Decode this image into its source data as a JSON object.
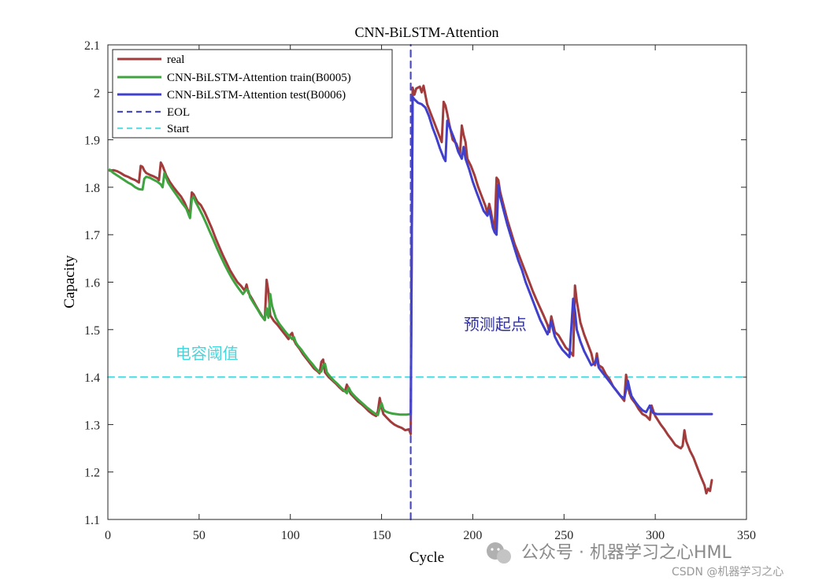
{
  "chart_data": {
    "type": "line",
    "title": "CNN-BiLSTM-Attention",
    "xlabel": "Cycle",
    "ylabel": "Capacity",
    "xlim": [
      0,
      350
    ],
    "ylim": [
      1.1,
      2.1
    ],
    "xticks": [
      0,
      50,
      100,
      150,
      200,
      250,
      300,
      350
    ],
    "yticks": [
      1.1,
      1.2,
      1.3,
      1.4,
      1.5,
      1.6,
      1.7,
      1.8,
      1.9,
      2.0,
      2.1
    ],
    "xtick_labels": [
      "0",
      "50",
      "100",
      "150",
      "200",
      "250",
      "300",
      "350"
    ],
    "ytick_labels": [
      "1.1",
      "1.2",
      "1.3",
      "1.4",
      "1.5",
      "1.6",
      "1.7",
      "1.8",
      "1.9",
      "2",
      "2.1"
    ],
    "grid": false,
    "legend_position": "top-left",
    "series": [
      {
        "name": "real",
        "color": "#a23b3b",
        "style": "solid",
        "x": [
          1,
          3,
          5,
          7,
          9,
          11,
          13,
          15,
          17,
          18,
          19,
          20,
          21,
          23,
          25,
          27,
          28,
          29,
          30,
          32,
          34,
          36,
          38,
          40,
          42,
          44,
          45,
          46,
          47,
          49,
          51,
          53,
          55,
          57,
          59,
          61,
          63,
          65,
          67,
          69,
          71,
          73,
          75,
          76,
          77,
          79,
          81,
          83,
          85,
          86,
          87,
          88,
          89,
          91,
          93,
          95,
          97,
          99,
          100,
          101,
          102,
          103,
          105,
          107,
          109,
          111,
          113,
          115,
          116,
          117,
          118,
          119,
          121,
          123,
          125,
          127,
          129,
          130,
          131,
          132,
          133,
          135,
          137,
          139,
          141,
          143,
          145,
          147,
          148,
          149,
          150,
          151,
          153,
          155,
          157,
          159,
          161,
          163,
          165,
          166,
          167,
          168,
          169,
          171,
          172,
          173,
          175,
          177,
          179,
          181,
          183,
          184,
          185,
          186,
          187,
          189,
          191,
          193,
          194,
          195,
          196,
          197,
          199,
          201,
          203,
          205,
          207,
          208,
          209,
          210,
          211,
          212,
          213,
          214,
          215,
          217,
          219,
          221,
          223,
          225,
          227,
          229,
          231,
          233,
          235,
          237,
          239,
          241,
          242,
          243,
          244,
          245,
          247,
          249,
          251,
          253,
          254,
          255,
          256,
          257,
          259,
          261,
          263,
          265,
          266,
          267,
          268,
          269,
          271,
          273,
          275,
          277,
          279,
          281,
          283,
          284,
          285,
          286,
          287,
          289,
          291,
          293,
          295,
          297,
          298,
          299,
          300,
          301,
          303,
          305,
          307,
          309,
          311,
          313,
          314,
          315,
          316,
          317,
          319,
          321,
          323,
          325,
          327,
          328,
          329,
          330,
          331
        ],
        "values": [
          1.835,
          1.836,
          1.834,
          1.83,
          1.825,
          1.822,
          1.818,
          1.815,
          1.81,
          1.845,
          1.843,
          1.835,
          1.83,
          1.826,
          1.823,
          1.819,
          1.815,
          1.852,
          1.845,
          1.825,
          1.811,
          1.8,
          1.79,
          1.781,
          1.768,
          1.75,
          1.745,
          1.789,
          1.785,
          1.77,
          1.762,
          1.748,
          1.731,
          1.713,
          1.693,
          1.675,
          1.657,
          1.641,
          1.625,
          1.612,
          1.6,
          1.592,
          1.582,
          1.595,
          1.578,
          1.565,
          1.551,
          1.538,
          1.525,
          1.52,
          1.605,
          1.58,
          1.53,
          1.518,
          1.51,
          1.5,
          1.49,
          1.48,
          1.489,
          1.493,
          1.478,
          1.47,
          1.46,
          1.448,
          1.438,
          1.428,
          1.418,
          1.412,
          1.408,
          1.432,
          1.437,
          1.41,
          1.4,
          1.393,
          1.386,
          1.378,
          1.371,
          1.37,
          1.384,
          1.375,
          1.365,
          1.357,
          1.349,
          1.343,
          1.336,
          1.328,
          1.322,
          1.318,
          1.328,
          1.356,
          1.336,
          1.322,
          1.314,
          1.306,
          1.3,
          1.296,
          1.293,
          1.288,
          1.29,
          1.28,
          2.01,
          1.995,
          2.008,
          2.012,
          2.0,
          2.014,
          1.975,
          1.955,
          1.935,
          1.915,
          1.895,
          1.98,
          1.972,
          1.955,
          1.935,
          1.9,
          1.892,
          1.87,
          1.93,
          1.91,
          1.895,
          1.86,
          1.845,
          1.825,
          1.8,
          1.78,
          1.76,
          1.745,
          1.765,
          1.748,
          1.725,
          1.71,
          1.82,
          1.815,
          1.79,
          1.76,
          1.73,
          1.705,
          1.68,
          1.66,
          1.64,
          1.62,
          1.6,
          1.58,
          1.562,
          1.545,
          1.528,
          1.51,
          1.495,
          1.528,
          1.512,
          1.495,
          1.488,
          1.475,
          1.462,
          1.455,
          1.45,
          1.445,
          1.593,
          1.56,
          1.515,
          1.49,
          1.47,
          1.45,
          1.432,
          1.425,
          1.45,
          1.425,
          1.42,
          1.405,
          1.395,
          1.38,
          1.37,
          1.36,
          1.35,
          1.405,
          1.38,
          1.365,
          1.355,
          1.345,
          1.332,
          1.322,
          1.318,
          1.31,
          1.34,
          1.328,
          1.318,
          1.312,
          1.3,
          1.29,
          1.278,
          1.268,
          1.257,
          1.252,
          1.25,
          1.255,
          1.288,
          1.265,
          1.245,
          1.23,
          1.21,
          1.19,
          1.172,
          1.155,
          1.165,
          1.16,
          1.183
        ]
      },
      {
        "name": "CNN-BiLSTM-Attention train(B0005)",
        "color": "#3fa43f",
        "style": "solid",
        "x": [
          1,
          3,
          5,
          7,
          9,
          11,
          13,
          15,
          17,
          19,
          20,
          21,
          23,
          25,
          27,
          29,
          30,
          31,
          33,
          35,
          37,
          39,
          41,
          43,
          45,
          46,
          47,
          48,
          50,
          52,
          54,
          56,
          58,
          60,
          62,
          64,
          66,
          68,
          70,
          72,
          74,
          76,
          77,
          78,
          80,
          82,
          84,
          86,
          87,
          88,
          89,
          90,
          92,
          94,
          96,
          98,
          100,
          101,
          102,
          103,
          104,
          106,
          108,
          110,
          112,
          114,
          116,
          117,
          118,
          119,
          120,
          122,
          124,
          126,
          128,
          130,
          131,
          132,
          133,
          134,
          136,
          138,
          140,
          142,
          144,
          146,
          148,
          149,
          150,
          151,
          152,
          154,
          156,
          158,
          160,
          162,
          164,
          166
        ],
        "values": [
          1.837,
          1.83,
          1.825,
          1.82,
          1.815,
          1.81,
          1.806,
          1.8,
          1.796,
          1.795,
          1.818,
          1.822,
          1.82,
          1.816,
          1.812,
          1.806,
          1.8,
          1.83,
          1.81,
          1.798,
          1.787,
          1.776,
          1.765,
          1.755,
          1.735,
          1.775,
          1.78,
          1.77,
          1.755,
          1.74,
          1.723,
          1.705,
          1.688,
          1.67,
          1.653,
          1.637,
          1.622,
          1.608,
          1.596,
          1.585,
          1.575,
          1.585,
          1.582,
          1.568,
          1.555,
          1.543,
          1.53,
          1.52,
          1.545,
          1.525,
          1.575,
          1.55,
          1.525,
          1.512,
          1.502,
          1.492,
          1.484,
          1.48,
          1.484,
          1.473,
          1.467,
          1.458,
          1.447,
          1.437,
          1.428,
          1.418,
          1.41,
          1.412,
          1.425,
          1.428,
          1.41,
          1.4,
          1.392,
          1.385,
          1.377,
          1.37,
          1.366,
          1.378,
          1.37,
          1.365,
          1.357,
          1.35,
          1.343,
          1.336,
          1.33,
          1.324,
          1.32,
          1.335,
          1.345,
          1.332,
          1.328,
          1.325,
          1.323,
          1.322,
          1.321,
          1.321,
          1.321,
          1.322
        ]
      },
      {
        "name": "CNN-BiLSTM-Attention test(B0006)",
        "color": "#4040cc",
        "style": "solid",
        "x": [
          166,
          167,
          168,
          170,
          172,
          174,
          176,
          178,
          180,
          182,
          184,
          185,
          186,
          188,
          190,
          192,
          194,
          195,
          196,
          198,
          200,
          202,
          204,
          206,
          208,
          209,
          210,
          211,
          212,
          213,
          214,
          215,
          217,
          219,
          221,
          223,
          225,
          227,
          229,
          231,
          233,
          235,
          237,
          239,
          241,
          243,
          244,
          245,
          247,
          249,
          251,
          253,
          255,
          256,
          257,
          259,
          261,
          263,
          265,
          267,
          268,
          269,
          271,
          273,
          275,
          277,
          279,
          281,
          283,
          285,
          286,
          287,
          289,
          291,
          293,
          295,
          297,
          298,
          299,
          301,
          303,
          305,
          307,
          309,
          311,
          313,
          315,
          317,
          319,
          321,
          323,
          325,
          327,
          329,
          331
        ],
        "values": [
          1.322,
          1.99,
          1.985,
          1.978,
          1.975,
          1.968,
          1.95,
          1.925,
          1.905,
          1.882,
          1.862,
          1.855,
          1.94,
          1.92,
          1.9,
          1.875,
          1.86,
          1.885,
          1.86,
          1.838,
          1.812,
          1.79,
          1.77,
          1.75,
          1.74,
          1.752,
          1.735,
          1.715,
          1.705,
          1.7,
          1.805,
          1.78,
          1.75,
          1.72,
          1.695,
          1.67,
          1.645,
          1.625,
          1.6,
          1.58,
          1.56,
          1.54,
          1.52,
          1.505,
          1.49,
          1.518,
          1.5,
          1.485,
          1.47,
          1.458,
          1.45,
          1.442,
          1.565,
          1.54,
          1.5,
          1.475,
          1.455,
          1.44,
          1.425,
          1.43,
          1.44,
          1.42,
          1.41,
          1.4,
          1.39,
          1.38,
          1.37,
          1.36,
          1.355,
          1.392,
          1.375,
          1.36,
          1.348,
          1.338,
          1.33,
          1.326,
          1.34,
          1.33,
          1.324,
          1.322,
          1.322,
          1.322,
          1.322,
          1.322,
          1.322,
          1.322,
          1.322,
          1.322,
          1.322,
          1.322,
          1.322,
          1.322,
          1.322,
          1.322,
          1.322
        ]
      },
      {
        "name": "EOL",
        "color": "#4a4acc",
        "style": "dashed",
        "x": [
          166,
          166
        ],
        "values": [
          1.1,
          2.1
        ]
      },
      {
        "name": "Start",
        "color": "#5fe0e6",
        "style": "dashed",
        "x": [
          0,
          350
        ],
        "values": [
          1.4,
          1.4
        ]
      }
    ],
    "annotations": [
      {
        "text": "电容阈值",
        "x": 37,
        "y": 1.438,
        "color": "#45d6dc"
      },
      {
        "text": "预测起点",
        "x": 195,
        "y": 1.5,
        "color": "#3030a0"
      }
    ]
  },
  "watermark": {
    "wechat_text": "公众号 · 机器学习之心HML",
    "csdn_text": "CSDN @机器学习之心"
  }
}
